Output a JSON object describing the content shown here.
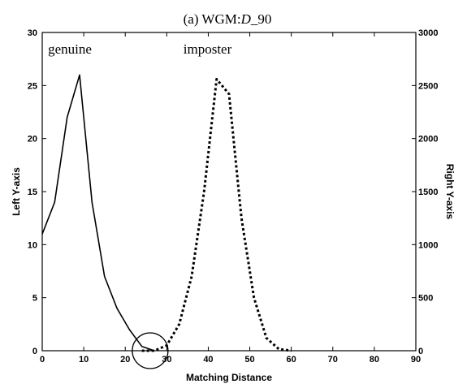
{
  "chart_data": {
    "type": "line",
    "title_prefix": "(a) WGM:",
    "title_italic": "D",
    "title_suffix": "_90",
    "xlabel": "Matching Distance",
    "ylabel_left": "Left Y-axis",
    "ylabel_right": "Right Y-axis",
    "xlim": [
      0,
      90
    ],
    "ylim_left": [
      0,
      30
    ],
    "ylim_right": [
      0,
      3000
    ],
    "x_ticks": [
      0,
      10,
      20,
      30,
      40,
      50,
      60,
      70,
      80,
      90
    ],
    "y_ticks_left": [
      0,
      5,
      10,
      15,
      20,
      25,
      30
    ],
    "y_ticks_right": [
      0,
      500,
      1000,
      1500,
      2000,
      2500,
      3000
    ],
    "grid": false,
    "series": [
      {
        "name": "genuine",
        "axis": "left",
        "style": "solid",
        "x": [
          0,
          3,
          6,
          9,
          12,
          15,
          18,
          21,
          24,
          27
        ],
        "y": [
          11,
          14,
          22,
          26,
          14,
          7,
          4,
          2,
          0.4,
          0
        ]
      },
      {
        "name": "imposter",
        "axis": "right",
        "style": "dotted",
        "x": [
          24,
          27,
          30,
          33,
          36,
          39,
          42,
          45,
          48,
          51,
          54,
          57,
          60
        ],
        "y": [
          0,
          0,
          50,
          250,
          700,
          1500,
          2560,
          2420,
          1250,
          500,
          120,
          15,
          0
        ]
      }
    ],
    "annotations": [
      {
        "text": "genuine",
        "x": 1,
        "y_left": 28
      },
      {
        "text": "imposter",
        "x": 43,
        "y_left": 28
      }
    ],
    "highlight_circle": {
      "x": 26,
      "y_left": 0
    }
  }
}
